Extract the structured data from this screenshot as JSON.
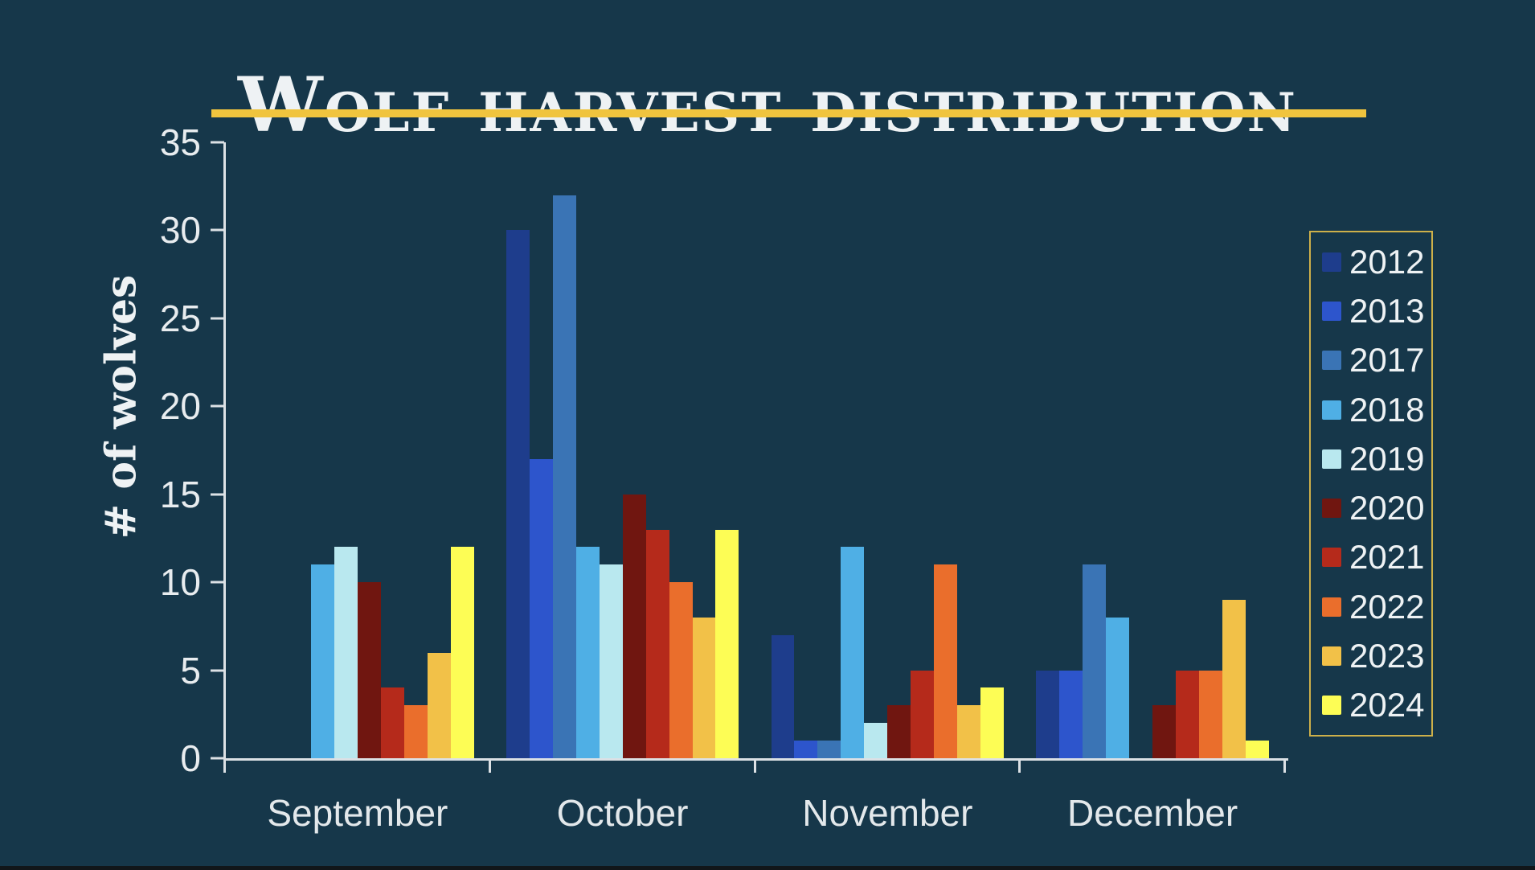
{
  "slide": {
    "background_color": "#16374a",
    "accent_color": "#f0c43e",
    "legend_border_color": "#cdb04a",
    "axis_color": "#dce1e5",
    "text_color": "#eef2f4",
    "bottom_edge_color": "#11161a"
  },
  "chart_data": {
    "type": "bar",
    "title": "Wolf harvest distribution",
    "xlabel": "",
    "ylabel": "# of wolves",
    "categories": [
      "September",
      "October",
      "November",
      "December"
    ],
    "series": [
      {
        "name": "2012",
        "color": "#1e3d8c",
        "values": [
          0,
          30,
          7,
          5
        ]
      },
      {
        "name": "2013",
        "color": "#2d55cc",
        "values": [
          0,
          17,
          1,
          5
        ]
      },
      {
        "name": "2017",
        "color": "#3a74b5",
        "values": [
          0,
          32,
          1,
          11
        ]
      },
      {
        "name": "2018",
        "color": "#4fafe5",
        "values": [
          11,
          12,
          12,
          8
        ]
      },
      {
        "name": "2019",
        "color": "#b9e8ef",
        "values": [
          12,
          11,
          2,
          0
        ]
      },
      {
        "name": "2020",
        "color": "#701610",
        "values": [
          10,
          15,
          3,
          3
        ]
      },
      {
        "name": "2021",
        "color": "#b52a1b",
        "values": [
          4,
          13,
          5,
          5
        ]
      },
      {
        "name": "2022",
        "color": "#ea6e2c",
        "values": [
          3,
          10,
          11,
          5
        ]
      },
      {
        "name": "2023",
        "color": "#f2c148",
        "values": [
          6,
          8,
          3,
          9
        ]
      },
      {
        "name": "2024",
        "color": "#fdfd55",
        "values": [
          12,
          13,
          4,
          1
        ]
      }
    ],
    "ylim": [
      0,
      35
    ],
    "yticks": [
      0,
      5,
      10,
      15,
      20,
      25,
      30,
      35
    ],
    "grid": false,
    "legend_position": "right",
    "legend_entries": [
      "2012",
      "2013",
      "2017",
      "2018",
      "2019",
      "2020",
      "2021",
      "2022",
      "2023",
      "2024"
    ]
  }
}
